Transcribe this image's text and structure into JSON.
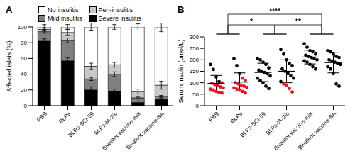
{
  "chart_data": [
    {
      "type": "bar",
      "title": "A",
      "stacked": true,
      "legend": "top",
      "categories": [
        "PBS",
        "BLPs",
        "BLPs-SCI-59",
        "BLPs-IA-2ic",
        "Bivalent vaccine-mix",
        "Bivalent vaccine-SA"
      ],
      "ylabel": "Affected islets (%)",
      "ylim": [
        0,
        100
      ],
      "yticks": [
        0,
        20,
        40,
        60,
        80,
        100
      ],
      "series": [
        {
          "name": "Severe insulitis",
          "color": "#000000",
          "values": [
            82,
            57,
            20,
            18,
            4,
            8
          ],
          "errors": [
            3,
            4,
            4,
            3,
            2,
            2
          ]
        },
        {
          "name": "Mild insulitis",
          "color": "#808080",
          "values": [
            12,
            26,
            14,
            22,
            6,
            4
          ],
          "errors": [
            2,
            3,
            2,
            3,
            1,
            1
          ]
        },
        {
          "name": "Peri-insulitis",
          "color": "#c8c8c8",
          "values": [
            3,
            10,
            16,
            12,
            8,
            14
          ],
          "errors": [
            2,
            4,
            4,
            3,
            3,
            5
          ]
        },
        {
          "name": "No insulitis",
          "color": "#ffffff",
          "values": [
            3,
            7,
            50,
            48,
            82,
            74
          ],
          "errors": [
            3,
            3,
            5,
            3,
            4,
            6
          ]
        }
      ]
    },
    {
      "type": "scatter",
      "title": "B",
      "categories": [
        "PBS",
        "BLPs",
        "BLPs-SCI-59",
        "BLPs-IA-2ic",
        "Bivalent vaccine-mix",
        "Bivalent vaccine-SA"
      ],
      "ylabel": "Serum insulin (pmol/L)",
      "ylim": [
        0,
        300
      ],
      "yticks": [
        0,
        50,
        100,
        150,
        200,
        250,
        300
      ],
      "values": [
        [
          180,
          158,
          125,
          105,
          100,
          98,
          92,
          88,
          82,
          78,
          72,
          68,
          62,
          58,
          55
        ],
        [
          205,
          175,
          140,
          120,
          110,
          100,
          95,
          90,
          85,
          80,
          78,
          72,
          68,
          62,
          55
        ],
        [
          205,
          200,
          190,
          180,
          165,
          155,
          150,
          145,
          140,
          130,
          120,
          110,
          100,
          85,
          75
        ],
        [
          245,
          225,
          200,
          185,
          175,
          160,
          150,
          140,
          130,
          120,
          105,
          95,
          90,
          75,
          60
        ],
        [
          270,
          255,
          240,
          235,
          225,
          220,
          215,
          210,
          205,
          200,
          195,
          190,
          180,
          170,
          160
        ],
        [
          240,
          235,
          225,
          215,
          210,
          200,
          195,
          190,
          185,
          180,
          170,
          160,
          140,
          95,
          85
        ]
      ],
      "colors": [
        [
          "#000000",
          "#000000",
          "#000000",
          "#000000",
          "#e8141e",
          "#e8141e",
          "#e8141e",
          "#e8141e",
          "#e8141e",
          "#e8141e",
          "#e8141e",
          "#e8141e",
          "#e8141e",
          "#e8141e",
          "#e8141e"
        ],
        [
          "#000000",
          "#000000",
          "#000000",
          "#e8141e",
          "#e8141e",
          "#e8141e",
          "#e8141e",
          "#e8141e",
          "#e8141e",
          "#e8141e",
          "#e8141e",
          "#e8141e",
          "#e8141e",
          "#e8141e",
          "#e8141e"
        ],
        [
          "#000000",
          "#000000",
          "#000000",
          "#000000",
          "#000000",
          "#000000",
          "#000000",
          "#000000",
          "#000000",
          "#000000",
          "#000000",
          "#000000",
          "#000000",
          "#000000",
          "#000000"
        ],
        [
          "#000000",
          "#000000",
          "#000000",
          "#000000",
          "#000000",
          "#000000",
          "#000000",
          "#000000",
          "#000000",
          "#000000",
          "#000000",
          "#e8141e",
          "#e8141e",
          "#e8141e",
          "#e8141e"
        ],
        [
          "#000000",
          "#000000",
          "#000000",
          "#000000",
          "#000000",
          "#000000",
          "#000000",
          "#000000",
          "#000000",
          "#000000",
          "#000000",
          "#000000",
          "#000000",
          "#000000",
          "#000000"
        ],
        [
          "#000000",
          "#000000",
          "#000000",
          "#000000",
          "#000000",
          "#000000",
          "#000000",
          "#000000",
          "#000000",
          "#000000",
          "#000000",
          "#000000",
          "#000000",
          "#000000",
          "#000000"
        ]
      ],
      "mean": [
        97,
        103,
        145,
        150,
        212,
        188
      ],
      "sd": [
        35,
        40,
        40,
        50,
        30,
        45
      ],
      "comparisons": [
        {
          "from": [
            "PBS",
            "BLPs"
          ],
          "to": [
            "Bivalent vaccine-mix",
            "Bivalent vaccine-SA"
          ],
          "label": "****"
        },
        {
          "from": [
            "PBS",
            "BLPs"
          ],
          "to": [
            "BLPs-SCI-59",
            "BLPs-IA-2ic"
          ],
          "label": "*"
        },
        {
          "from": [
            "BLPs-SCI-59",
            "BLPs-IA-2ic"
          ],
          "to": [
            "Bivalent vaccine-mix",
            "Bivalent vaccine-SA"
          ],
          "label": "**"
        }
      ]
    }
  ]
}
